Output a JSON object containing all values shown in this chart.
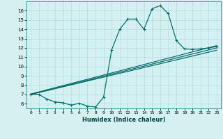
{
  "title": "",
  "xlabel": "Humidex (Indice chaleur)",
  "ylabel": "",
  "background_color": "#d4f0f0",
  "grid_color": "#b8e0e0",
  "line_color": "#006868",
  "xlim": [
    -0.5,
    23.5
  ],
  "ylim": [
    5.5,
    17.0
  ],
  "yticks": [
    6,
    7,
    8,
    9,
    10,
    11,
    12,
    13,
    14,
    15,
    16
  ],
  "xticks": [
    0,
    1,
    2,
    3,
    4,
    5,
    6,
    7,
    8,
    9,
    10,
    11,
    12,
    13,
    14,
    15,
    16,
    17,
    18,
    19,
    20,
    21,
    22,
    23
  ],
  "curve1_x": [
    0,
    1,
    2,
    3,
    4,
    5,
    6,
    7,
    8,
    9,
    10,
    11,
    12,
    13,
    14,
    15,
    16,
    17,
    18,
    19,
    20,
    21,
    22,
    23
  ],
  "curve1_y": [
    7.0,
    7.0,
    6.5,
    6.2,
    6.1,
    5.85,
    6.05,
    5.75,
    5.65,
    6.7,
    11.8,
    14.0,
    15.1,
    15.1,
    14.0,
    16.2,
    16.55,
    15.7,
    12.8,
    11.9,
    11.85,
    11.9,
    12.0,
    12.15
  ],
  "line1_x": [
    0,
    23
  ],
  "line1_y": [
    7.05,
    12.25
  ],
  "line2_x": [
    0,
    23
  ],
  "line2_y": [
    7.0,
    11.75
  ],
  "line3_x": [
    0,
    23
  ],
  "line3_y": [
    7.0,
    12.0
  ]
}
